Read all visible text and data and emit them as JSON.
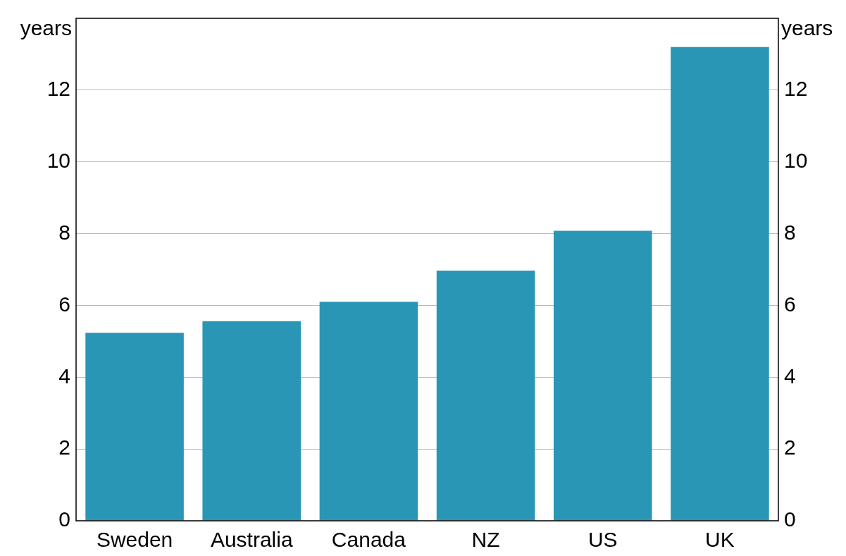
{
  "chart_data": {
    "type": "bar",
    "categories": [
      "Sweden",
      "Australia",
      "Canada",
      "NZ",
      "US",
      "UK"
    ],
    "values": [
      5.24,
      5.56,
      6.1,
      6.97,
      8.08,
      13.2
    ],
    "color": "#2a96b5",
    "ylabel": "years",
    "y2label": "years",
    "ylim": [
      0,
      14
    ],
    "yticks": [
      0,
      2,
      4,
      6,
      8,
      10,
      12
    ],
    "y2lim": [
      0,
      14
    ],
    "y2ticks": [
      0,
      2,
      4,
      6,
      8,
      10,
      12
    ],
    "grid": "y",
    "legend": false
  }
}
